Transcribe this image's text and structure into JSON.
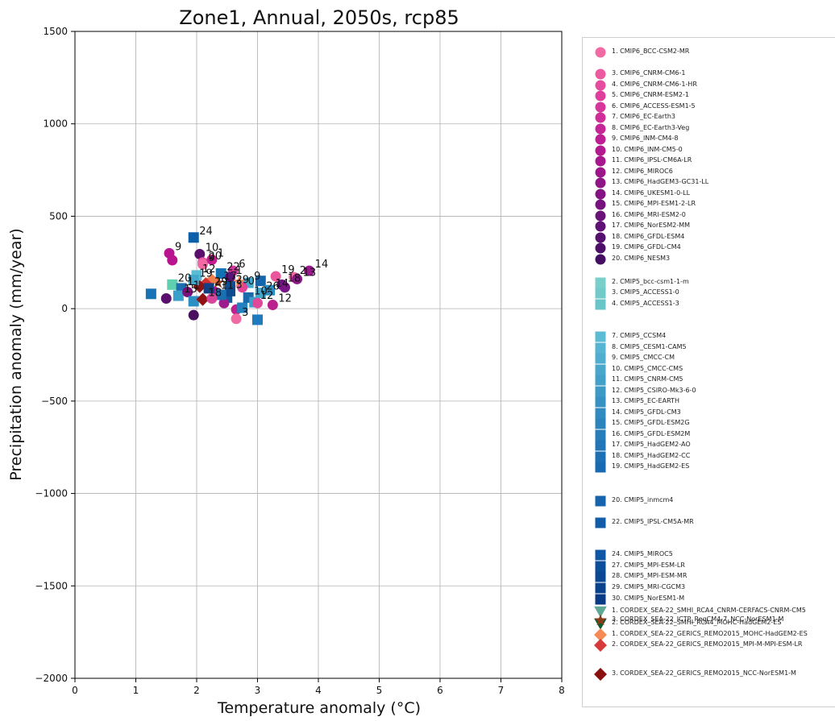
{
  "chart_data": {
    "type": "scatter",
    "title": "Zone1, Annual, 2050s, rcp85",
    "xlabel": "Temperature anomaly ($^\\circ$C)",
    "xlabel_display": "Temperature anomaly (°C)",
    "ylabel": "Precipitation anomaly (mm/year)",
    "xlim": [
      0,
      8
    ],
    "ylim": [
      -2000,
      1500
    ],
    "x_ticks": [
      "0",
      "1",
      "2",
      "3",
      "4",
      "5",
      "6",
      "7",
      "8"
    ],
    "y_ticks": [
      "1500",
      "1000",
      "500",
      "0",
      "−500",
      "−1000",
      "−1500",
      "−2000"
    ],
    "grid": true,
    "legend_placement": "outside-right",
    "points": [
      {
        "x": 1.95,
        "y": 385,
        "label": "24",
        "marker": "square",
        "color": "#0b5ea8"
      },
      {
        "x": 1.55,
        "y": 300,
        "label": "9",
        "marker": "circle",
        "color": "#b8148f"
      },
      {
        "x": 1.6,
        "y": 262,
        "label": "",
        "marker": "circle",
        "color": "#b8148f"
      },
      {
        "x": 2.05,
        "y": 295,
        "label": "10",
        "marker": "circle",
        "color": "#5a0f6e"
      },
      {
        "x": 2.1,
        "y": 250,
        "label": "20",
        "marker": "circle",
        "color": "#e9569c"
      },
      {
        "x": 2.25,
        "y": 265,
        "label": "1",
        "marker": "circle",
        "color": "#c61e92"
      },
      {
        "x": 2.1,
        "y": 240,
        "label": "9",
        "marker": "circle",
        "color": "#f06ba4"
      },
      {
        "x": 2.6,
        "y": 205,
        "label": "6",
        "marker": "circle",
        "color": "#d2379c"
      },
      {
        "x": 2.4,
        "y": 190,
        "label": "22",
        "marker": "square",
        "color": "#1172b4"
      },
      {
        "x": 2.55,
        "y": 170,
        "label": "1",
        "marker": "circle",
        "color": "#5a1378"
      },
      {
        "x": 2.35,
        "y": 140,
        "label": "17",
        "marker": "star",
        "color": "#8b3a1a"
      },
      {
        "x": 2.25,
        "y": 155,
        "label": "",
        "marker": "diamond",
        "color": "#f07d4d"
      },
      {
        "x": 2.15,
        "y": 135,
        "label": "",
        "marker": "diamond",
        "color": "#d43030"
      },
      {
        "x": 2.05,
        "y": 120,
        "label": "",
        "marker": "diamond",
        "color": "#8e1212"
      },
      {
        "x": 2.0,
        "y": 180,
        "label": "12",
        "marker": "square",
        "color": "#5abcd3"
      },
      {
        "x": 1.95,
        "y": 155,
        "label": "19",
        "marker": "square",
        "color": "#43a9cc"
      },
      {
        "x": 1.6,
        "y": 130,
        "label": "20",
        "marker": "square",
        "color": "#5fd0b0"
      },
      {
        "x": 1.25,
        "y": 80,
        "label": "",
        "marker": "square",
        "color": "#1a73b5"
      },
      {
        "x": 1.5,
        "y": 55,
        "label": "",
        "marker": "circle",
        "color": "#5b0f6c"
      },
      {
        "x": 1.75,
        "y": 110,
        "label": "1",
        "marker": "square",
        "color": "#1c6fb0"
      },
      {
        "x": 1.7,
        "y": 70,
        "label": "15",
        "marker": "square",
        "color": "#3aa0cb"
      },
      {
        "x": 1.85,
        "y": 90,
        "label": "1",
        "marker": "circle",
        "color": "#7c0f7c"
      },
      {
        "x": 1.95,
        "y": 40,
        "label": "",
        "marker": "square",
        "color": "#2c8fc4"
      },
      {
        "x": 1.95,
        "y": -35,
        "label": "",
        "marker": "circle",
        "color": "#4a0f5e"
      },
      {
        "x": 2.1,
        "y": 50,
        "label": "18",
        "marker": "diamond",
        "color": "#8e1212"
      },
      {
        "x": 2.3,
        "y": 90,
        "label": "11",
        "marker": "circle",
        "color": "#a2188c"
      },
      {
        "x": 2.5,
        "y": 60,
        "label": "",
        "marker": "square",
        "color": "#0d5d9e"
      },
      {
        "x": 2.45,
        "y": 30,
        "label": "",
        "marker": "circle",
        "color": "#9c1a8c"
      },
      {
        "x": 2.65,
        "y": -5,
        "label": "",
        "marker": "circle",
        "color": "#c21f8e"
      },
      {
        "x": 2.65,
        "y": -55,
        "label": "3",
        "marker": "circle",
        "color": "#f06ba4"
      },
      {
        "x": 2.75,
        "y": 5,
        "label": "",
        "marker": "square",
        "color": "#2381bd"
      },
      {
        "x": 2.85,
        "y": 60,
        "label": "10",
        "marker": "square",
        "color": "#1c6aaa"
      },
      {
        "x": 3.0,
        "y": -60,
        "label": "",
        "marker": "square",
        "color": "#1e7bbd"
      },
      {
        "x": 2.95,
        "y": 35,
        "label": "12",
        "marker": "square",
        "color": "#3aa0cb"
      },
      {
        "x": 2.85,
        "y": 140,
        "label": "9",
        "marker": "square",
        "color": "#43a9cc"
      },
      {
        "x": 3.05,
        "y": 150,
        "label": "",
        "marker": "square",
        "color": "#1565ad"
      },
      {
        "x": 3.05,
        "y": 85,
        "label": "26",
        "marker": "square",
        "color": "#43a9cc"
      },
      {
        "x": 3.2,
        "y": 100,
        "label": "14",
        "marker": "square",
        "color": "#2b8ec3"
      },
      {
        "x": 3.25,
        "y": 20,
        "label": "12",
        "marker": "circle",
        "color": "#bb1f8e"
      },
      {
        "x": 3.0,
        "y": 30,
        "label": "",
        "marker": "circle",
        "color": "#e0489a"
      },
      {
        "x": 3.4,
        "y": 130,
        "label": "18",
        "marker": "circle",
        "color": "#6c1483"
      },
      {
        "x": 3.45,
        "y": 115,
        "label": "",
        "marker": "circle",
        "color": "#7a1585"
      },
      {
        "x": 3.3,
        "y": 175,
        "label": "19",
        "marker": "circle",
        "color": "#e9569c"
      },
      {
        "x": 3.6,
        "y": 170,
        "label": "2",
        "marker": "circle",
        "color": "#f06ba4"
      },
      {
        "x": 3.65,
        "y": 160,
        "label": "13",
        "marker": "circle",
        "color": "#8b168a"
      },
      {
        "x": 3.85,
        "y": 205,
        "label": "14",
        "marker": "circle",
        "color": "#9a178c"
      },
      {
        "x": 2.55,
        "y": 120,
        "label": "29",
        "marker": "square",
        "color": "#0e4f93"
      },
      {
        "x": 2.75,
        "y": 115,
        "label": "0",
        "marker": "circle",
        "color": "#e04499"
      },
      {
        "x": 2.7,
        "y": 145,
        "label": "",
        "marker": "star",
        "color": "#f07d4d"
      },
      {
        "x": 2.2,
        "y": 110,
        "label": "29",
        "marker": "square",
        "color": "#103f84"
      },
      {
        "x": 2.55,
        "y": 95,
        "label": "3",
        "marker": "square",
        "color": "#0d4a8e"
      },
      {
        "x": 2.4,
        "y": 75,
        "label": "",
        "marker": "square",
        "color": "#1c6fb0"
      },
      {
        "x": 2.25,
        "y": 55,
        "label": "",
        "marker": "circle",
        "color": "#d9449c"
      }
    ],
    "legend": [
      {
        "label": "1. CMIP6_BCC-CSM2-MR",
        "marker": "circle",
        "color": "#f26aa3"
      },
      {
        "label": "3. CMIP6_CNRM-CM6-1",
        "marker": "circle",
        "color": "#ec5aa0"
      },
      {
        "label": "4. CMIP6_CNRM-CM6-1-HR",
        "marker": "circle",
        "color": "#e64c9e"
      },
      {
        "label": "5. CMIP6_CNRM-ESM2-1",
        "marker": "circle",
        "color": "#df3f9c"
      },
      {
        "label": "6. CMIP6_ACCESS-ESM1-5",
        "marker": "circle",
        "color": "#d7369a"
      },
      {
        "label": "7. CMIP6_EC-Earth3",
        "marker": "circle",
        "color": "#cf2d98"
      },
      {
        "label": "8. CMIP6_EC-Earth3-Veg",
        "marker": "circle",
        "color": "#c62596"
      },
      {
        "label": "9. CMIP6_INM-CM4-8",
        "marker": "circle",
        "color": "#bd1e93"
      },
      {
        "label": "10. CMIP6_INM-CM5-0",
        "marker": "circle",
        "color": "#b31a90"
      },
      {
        "label": "11. CMIP6_IPSL-CM6A-LR",
        "marker": "circle",
        "color": "#a8178d"
      },
      {
        "label": "12. CMIP6_MIROC6",
        "marker": "circle",
        "color": "#9c168a"
      },
      {
        "label": "13. CMIP6_HadGEM3-GC31-LL",
        "marker": "circle",
        "color": "#901587"
      },
      {
        "label": "14. CMIP6_UKESM1-0-LL",
        "marker": "circle",
        "color": "#841483"
      },
      {
        "label": "15. CMIP6_MPI-ESM1-2-LR",
        "marker": "circle",
        "color": "#77137f"
      },
      {
        "label": "16. CMIP6_MRI-ESM2-0",
        "marker": "circle",
        "color": "#6b127a"
      },
      {
        "label": "17. CMIP6_NorESM2-MM",
        "marker": "circle",
        "color": "#601175"
      },
      {
        "label": "18. CMIP6_GFDL-ESM4",
        "marker": "circle",
        "color": "#56106f"
      },
      {
        "label": "19. CMIP6_GFDL-CM4",
        "marker": "circle",
        "color": "#4d0f69"
      },
      {
        "label": "20. CMIP6_NESM3",
        "marker": "circle",
        "color": "#440e62"
      },
      {
        "label": "2. CMIP5_bcc-csm1-1-m",
        "marker": "square",
        "color": "#7bcfcb"
      },
      {
        "label": "3. CMIP5_ACCESS1-0",
        "marker": "square",
        "color": "#72cac9"
      },
      {
        "label": "4. CMIP5_ACCESS1-3",
        "marker": "square",
        "color": "#6ac5c8"
      },
      {
        "label": "7. CMIP5_CCSM4",
        "marker": "square",
        "color": "#5bbcd4"
      },
      {
        "label": "8. CMIP5_CESM1-CAM5",
        "marker": "square",
        "color": "#55b5d2"
      },
      {
        "label": "9. CMIP5_CMCC-CM",
        "marker": "square",
        "color": "#4faecf"
      },
      {
        "label": "10. CMIP5_CMCC-CMS",
        "marker": "square",
        "color": "#49a7cc"
      },
      {
        "label": "11. CMIP5_CNRM-CM5",
        "marker": "square",
        "color": "#43a0c9"
      },
      {
        "label": "12. CMIP5_CSIRO-Mk3-6-0",
        "marker": "square",
        "color": "#3d99c6"
      },
      {
        "label": "13. CMIP5_EC-EARTH",
        "marker": "square",
        "color": "#3792c3"
      },
      {
        "label": "14. CMIP5_GFDL-CM3",
        "marker": "square",
        "color": "#318bc0"
      },
      {
        "label": "15. CMIP5_GFDL-ESM2G",
        "marker": "square",
        "color": "#2c84bd"
      },
      {
        "label": "16. CMIP5_GFDL-ESM2M",
        "marker": "square",
        "color": "#277dba"
      },
      {
        "label": "17. CMIP5_HadGEM2-AO",
        "marker": "square",
        "color": "#2276b7"
      },
      {
        "label": "18. CMIP5_HadGEM2-CC",
        "marker": "square",
        "color": "#1e70b4"
      },
      {
        "label": "19. CMIP5_HadGEM2-ES",
        "marker": "square",
        "color": "#1a6ab1"
      },
      {
        "label": "20. CMIP5_inmcm4",
        "marker": "square",
        "color": "#1764ae"
      },
      {
        "label": "22. CMIP5_IPSL-CM5A-MR",
        "marker": "square",
        "color": "#125da9"
      },
      {
        "label": "24. CMIP5_MIROC5",
        "marker": "square",
        "color": "#0f57a4"
      },
      {
        "label": "27. CMIP5_MPI-ESM-LR",
        "marker": "square",
        "color": "#0c4e99"
      },
      {
        "label": "28. CMIP5_MPI-ESM-MR",
        "marker": "square",
        "color": "#0b4893"
      },
      {
        "label": "29. CMIP5_MRI-CGCM3",
        "marker": "square",
        "color": "#0a428c"
      },
      {
        "label": "30. CMIP5_NorESM1-M",
        "marker": "square",
        "color": "#093c85"
      },
      {
        "label": "1. CORDEX_SEA-22_SMHI_RCA4_CNRM-CERFACS-CNRM-CM5",
        "marker": "triangle-down",
        "color": "#5fa894"
      },
      {
        "label": "2. CORDEX_SEA-22_SMHI_RCA4_MOHC-HadGEM2-ES",
        "marker": "triangle-down",
        "color": "#0f5c30"
      },
      {
        "label": "1. CORDEX_SEA-22_GERICS_REMO2015_MOHC-HadGEM2-ES",
        "marker": "diamond",
        "color": "#f58a55"
      },
      {
        "label": "2. CORDEX_SEA-22_GERICS_REMO2015_MPI-M-MPI-ESM-LR",
        "marker": "diamond",
        "color": "#d63a3a"
      },
      {
        "label": "3. CORDEX_SEA-22_GERICS_REMO2015_NCC-NorESM1-M",
        "marker": "diamond",
        "color": "#8a1010"
      },
      {
        "label": "3. CORDEX_SEA-22_ICTP_RegCM4-7_NCC-NorESM1-M",
        "marker": "star",
        "color": "#8b3a1a"
      }
    ]
  }
}
